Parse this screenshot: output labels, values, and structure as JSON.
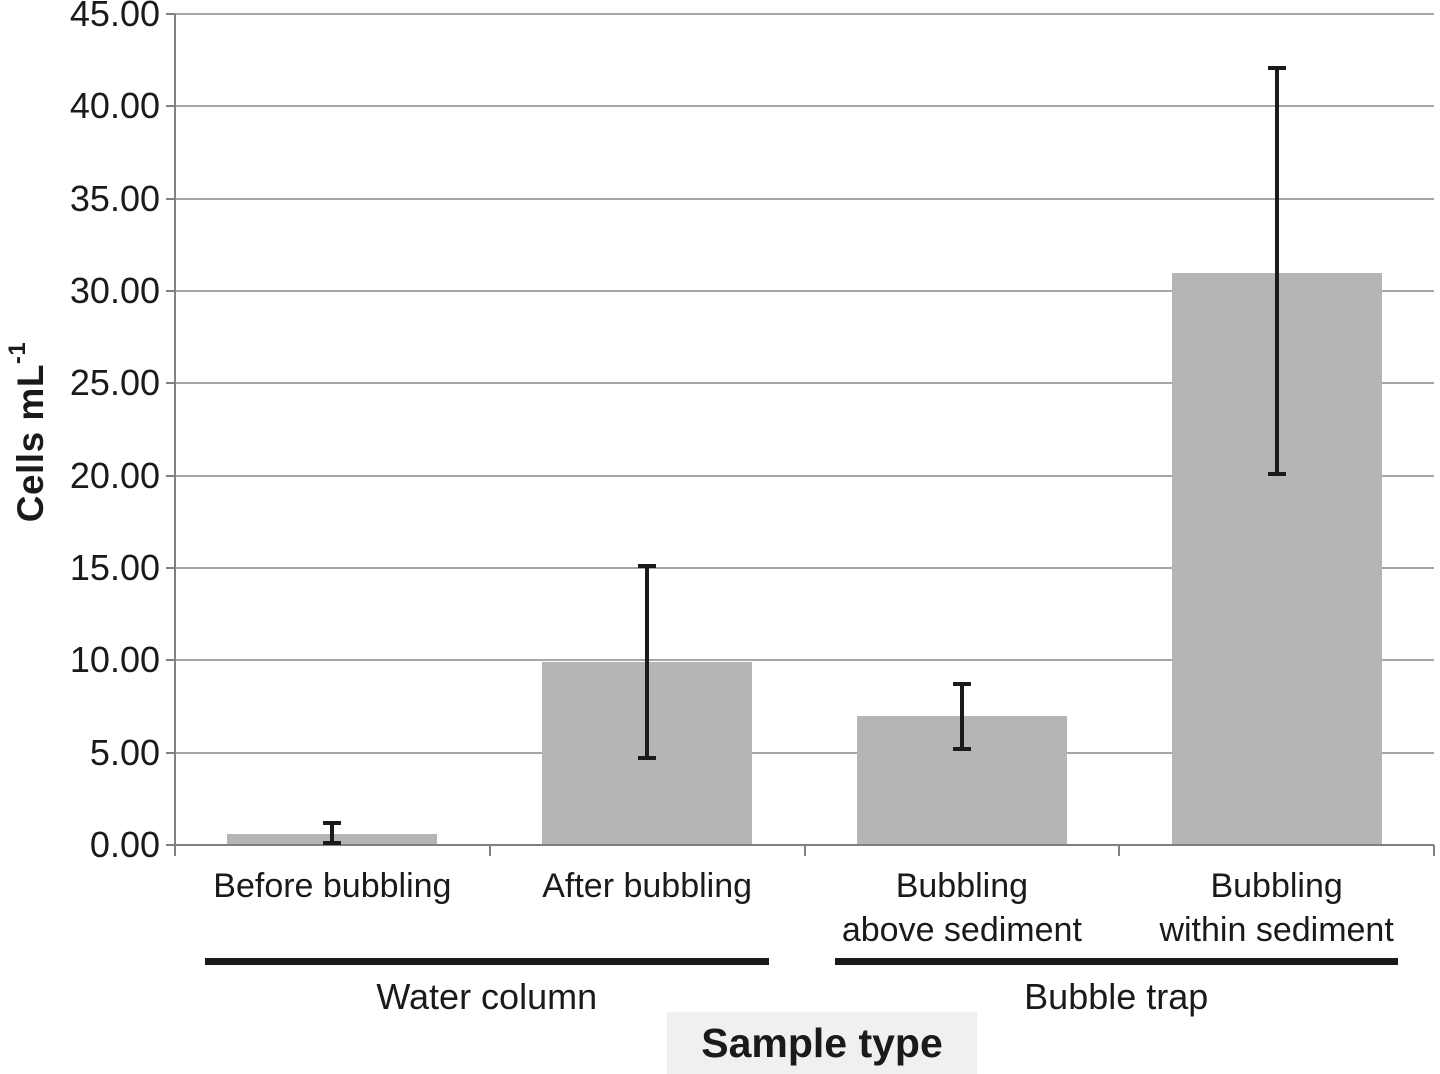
{
  "figure": {
    "background": "#ffffff"
  },
  "chart_data": {
    "type": "bar",
    "title": "",
    "xlabel": "Sample type",
    "ylabel": "Cells mL-1",
    "ylabel_base": "Cells mL",
    "ylabel_sup": "-1",
    "ylim": [
      0,
      45
    ],
    "ytick_step": 5,
    "ytick_labels": [
      "0.00",
      "5.00",
      "10.00",
      "15.00",
      "20.00",
      "25.00",
      "30.00",
      "35.00",
      "40.00",
      "45.00"
    ],
    "grid": true,
    "legend": null,
    "categories": [
      "Before bubbling",
      "After bubbling",
      "Bubbling\nabove sediment",
      "Bubbling\nwithin sediment"
    ],
    "values": [
      0.6,
      9.9,
      7.0,
      31.0
    ],
    "error_bars": [
      {
        "low": 0.1,
        "high": 1.2
      },
      {
        "low": 4.7,
        "high": 15.1
      },
      {
        "low": 5.2,
        "high": 8.7
      },
      {
        "low": 20.1,
        "high": 42.1
      }
    ],
    "groups": [
      {
        "label": "Water column",
        "from_category": 0,
        "to_category": 1
      },
      {
        "label": "Bubble trap",
        "from_category": 2,
        "to_category": 3
      }
    ],
    "colors": {
      "bar_fill": "#b5b5b5",
      "gridline": "#a6a6a6",
      "axis": "#808080",
      "error_bar": "#1a1a1a",
      "group_line": "#1a1a1a",
      "text": "#1a1a1a",
      "xlabel_box": "#f0f0f0"
    }
  }
}
